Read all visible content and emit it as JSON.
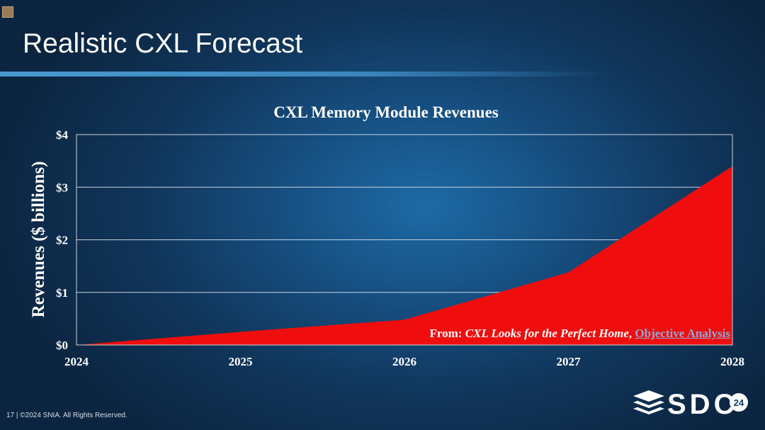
{
  "slide": {
    "title": "Realistic CXL Forecast",
    "footer": "17 | ©2024 SNIA. All Rights Reserved."
  },
  "source": {
    "prefix": "From: ",
    "title": "CXL Looks for the Perfect Home",
    "separator": ", ",
    "link_text": "Objective Analysis"
  },
  "logo": {
    "text": "SDC",
    "badge": "24"
  },
  "colors": {
    "area_fill": "#f00d0d",
    "grid": "#c9d3dd",
    "text": "#ffffff"
  },
  "chart_data": {
    "type": "area",
    "title": "CXL Memory Module Revenues",
    "ylabel": "Revenues ($ billions)",
    "xlabel": "",
    "x": [
      2024,
      2025,
      2026,
      2027,
      2028
    ],
    "x_tick_labels": [
      "2024",
      "2025",
      "2026",
      "2027",
      "2028"
    ],
    "y_ticks": [
      0,
      1,
      2,
      3,
      4
    ],
    "y_tick_labels": [
      "$0",
      "$1",
      "$2",
      "$3",
      "$4"
    ],
    "ylim": [
      0,
      4
    ],
    "grid": true,
    "legend": "none",
    "series": [
      {
        "values": [
          0.0,
          0.25,
          0.48,
          1.38,
          3.4
        ]
      }
    ]
  }
}
